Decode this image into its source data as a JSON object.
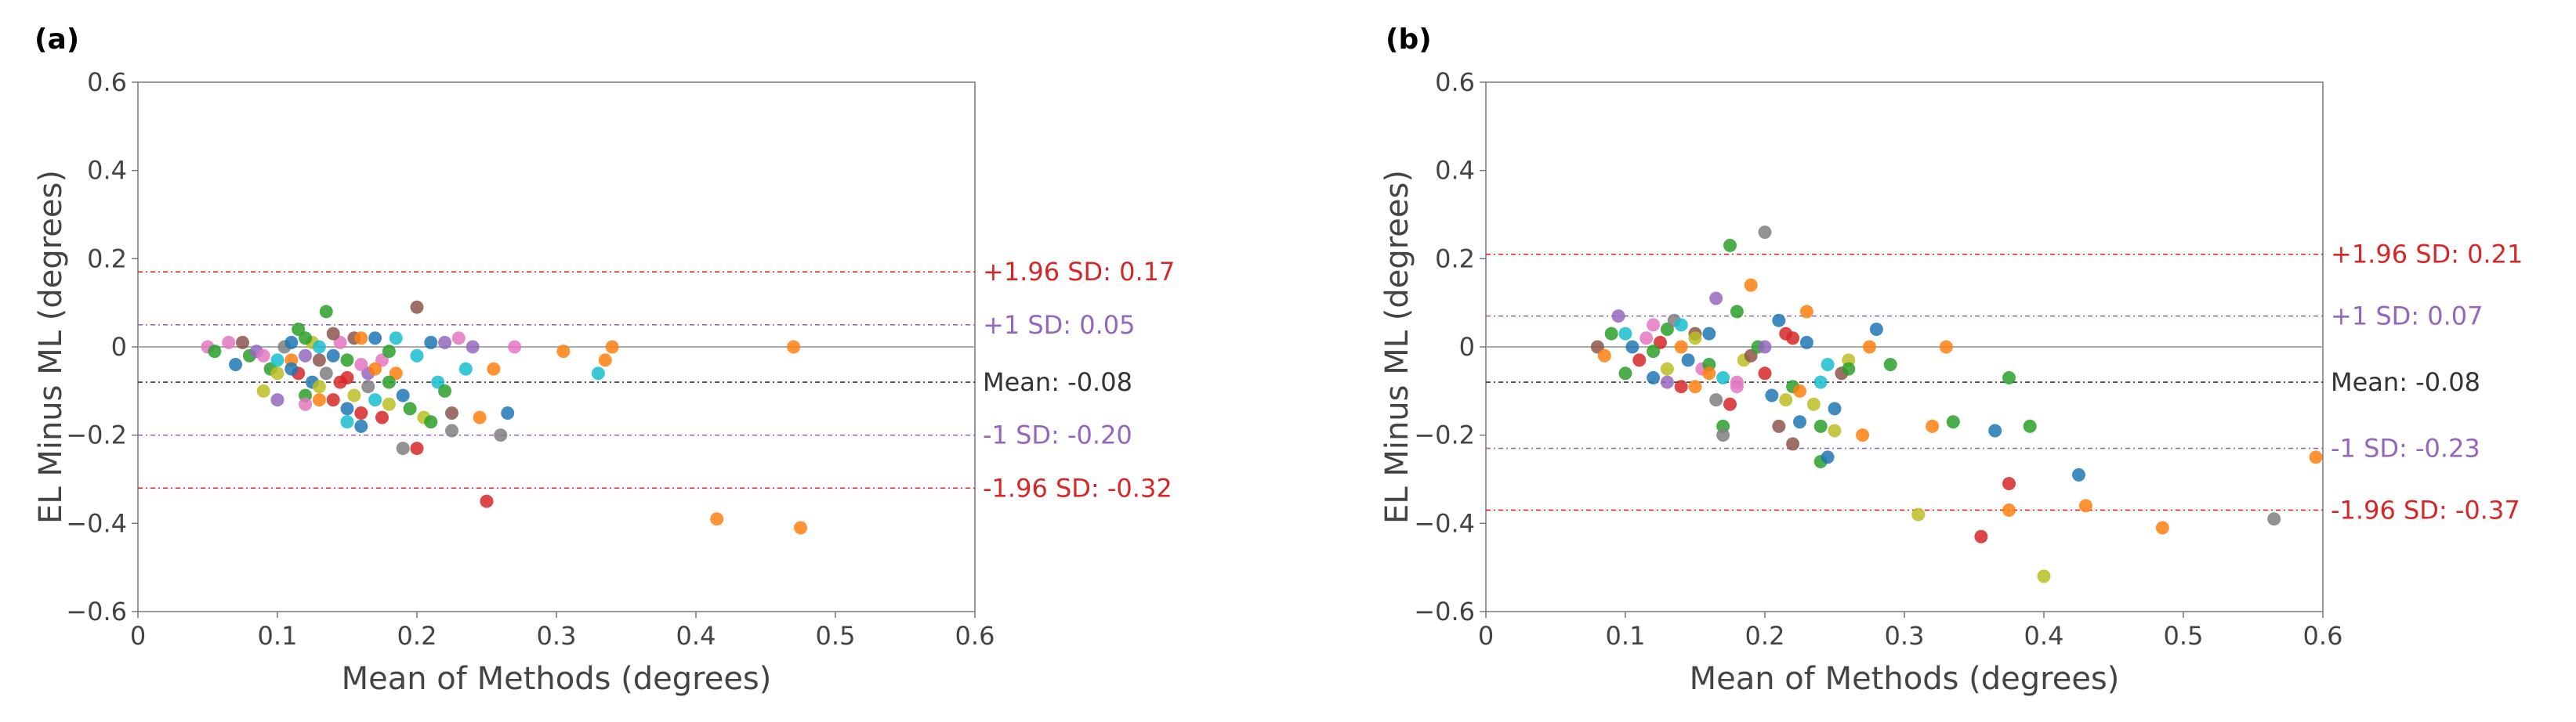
{
  "colors": {
    "sd196": "#d62728",
    "sd1": "#9467bd",
    "mean": "#000000",
    "zero": "#aaaaaa",
    "text": "#444444",
    "palette": [
      "#1f77b4",
      "#ff7f0e",
      "#2ca02c",
      "#d62728",
      "#9467bd",
      "#8c564b",
      "#e377c2",
      "#7f7f7f",
      "#bcbd22",
      "#17becf"
    ]
  },
  "chart_data": [
    {
      "type": "scatter",
      "panel_label": "(a)",
      "xlabel": "Mean of Methods (degrees)",
      "ylabel": "EL Minus ML (degrees)",
      "xlim": [
        0,
        0.6
      ],
      "ylim": [
        -0.6,
        0.6
      ],
      "xticks": [
        0,
        0.1,
        0.2,
        0.3,
        0.4,
        0.5,
        0.6
      ],
      "xtick_labels": [
        "0",
        "0.1",
        "0.2",
        "0.3",
        "0.4",
        "0.5",
        "0.6"
      ],
      "yticks": [
        -0.6,
        -0.4,
        -0.2,
        0,
        0.2,
        0.4,
        0.6
      ],
      "ytick_labels": [
        "−0.6",
        "−0.4",
        "−0.2",
        "0",
        "0.2",
        "0.4",
        "0.6"
      ],
      "reference_lines": [
        {
          "name": "plus196",
          "value": 0.17,
          "label": "+1.96 SD: 0.17",
          "color": "#d62728"
        },
        {
          "name": "plus1",
          "value": 0.05,
          "label": "+1 SD: 0.05",
          "color": "#9467bd"
        },
        {
          "name": "mean",
          "value": -0.08,
          "label": "Mean: -0.08",
          "color": "#333333"
        },
        {
          "name": "minus1",
          "value": -0.2,
          "label": "-1 SD: -0.20",
          "color": "#9467bd"
        },
        {
          "name": "minus196",
          "value": -0.32,
          "label": "-1.96 SD: -0.32",
          "color": "#d62728"
        }
      ],
      "points": [
        [
          0.05,
          0.0,
          6
        ],
        [
          0.055,
          -0.01,
          2
        ],
        [
          0.065,
          0.01,
          6
        ],
        [
          0.07,
          -0.04,
          0
        ],
        [
          0.075,
          0.01,
          5
        ],
        [
          0.08,
          -0.02,
          2
        ],
        [
          0.085,
          -0.01,
          4
        ],
        [
          0.09,
          -0.1,
          8
        ],
        [
          0.09,
          -0.02,
          6
        ],
        [
          0.095,
          -0.05,
          2
        ],
        [
          0.1,
          -0.06,
          8
        ],
        [
          0.1,
          -0.03,
          9
        ],
        [
          0.105,
          0.0,
          7
        ],
        [
          0.11,
          -0.03,
          1
        ],
        [
          0.11,
          0.01,
          0
        ],
        [
          0.115,
          0.04,
          2
        ],
        [
          0.115,
          -0.06,
          3
        ],
        [
          0.12,
          -0.11,
          2
        ],
        [
          0.12,
          -0.13,
          6
        ],
        [
          0.12,
          -0.02,
          4
        ],
        [
          0.125,
          0.01,
          8
        ],
        [
          0.125,
          -0.08,
          0
        ],
        [
          0.13,
          -0.03,
          5
        ],
        [
          0.13,
          -0.12,
          1
        ],
        [
          0.13,
          0.0,
          9
        ],
        [
          0.135,
          0.08,
          2
        ],
        [
          0.135,
          -0.06,
          7
        ],
        [
          0.14,
          -0.12,
          3
        ],
        [
          0.14,
          -0.02,
          0
        ],
        [
          0.145,
          -0.08,
          3
        ],
        [
          0.145,
          0.01,
          6
        ],
        [
          0.15,
          -0.14,
          0
        ],
        [
          0.15,
          -0.17,
          9
        ],
        [
          0.15,
          -0.03,
          2
        ],
        [
          0.155,
          0.02,
          5
        ],
        [
          0.155,
          -0.11,
          8
        ],
        [
          0.16,
          -0.15,
          3
        ],
        [
          0.16,
          -0.18,
          0
        ],
        [
          0.16,
          0.02,
          1
        ],
        [
          0.165,
          -0.06,
          4
        ],
        [
          0.165,
          -0.09,
          7
        ],
        [
          0.17,
          -0.12,
          9
        ],
        [
          0.17,
          0.02,
          0
        ],
        [
          0.175,
          -0.16,
          3
        ],
        [
          0.175,
          -0.03,
          6
        ],
        [
          0.18,
          -0.01,
          2
        ],
        [
          0.18,
          -0.13,
          8
        ],
        [
          0.185,
          0.02,
          9
        ],
        [
          0.185,
          -0.06,
          1
        ],
        [
          0.19,
          -0.11,
          0
        ],
        [
          0.19,
          -0.23,
          7
        ],
        [
          0.195,
          -0.14,
          2
        ],
        [
          0.2,
          0.09,
          5
        ],
        [
          0.2,
          -0.23,
          3
        ],
        [
          0.205,
          -0.16,
          8
        ],
        [
          0.21,
          0.01,
          0
        ],
        [
          0.21,
          -0.17,
          2
        ],
        [
          0.215,
          -0.08,
          9
        ],
        [
          0.22,
          -0.1,
          2
        ],
        [
          0.22,
          0.01,
          4
        ],
        [
          0.225,
          -0.19,
          7
        ],
        [
          0.225,
          -0.15,
          5
        ],
        [
          0.23,
          0.02,
          6
        ],
        [
          0.235,
          -0.05,
          9
        ],
        [
          0.24,
          0.0,
          4
        ],
        [
          0.245,
          -0.16,
          1
        ],
        [
          0.25,
          -0.35,
          3
        ],
        [
          0.255,
          -0.05,
          1
        ],
        [
          0.26,
          -0.2,
          7
        ],
        [
          0.265,
          -0.15,
          0
        ],
        [
          0.27,
          0.0,
          6
        ],
        [
          0.305,
          -0.01,
          1
        ],
        [
          0.33,
          -0.06,
          9
        ],
        [
          0.335,
          -0.03,
          1
        ],
        [
          0.34,
          0.0,
          1
        ],
        [
          0.415,
          -0.39,
          1
        ],
        [
          0.47,
          0.0,
          1
        ],
        [
          0.475,
          -0.41,
          1
        ],
        [
          0.11,
          -0.05,
          0
        ],
        [
          0.12,
          0.02,
          2
        ],
        [
          0.14,
          0.03,
          5
        ],
        [
          0.16,
          -0.04,
          6
        ],
        [
          0.18,
          -0.08,
          2
        ],
        [
          0.2,
          -0.02,
          9
        ],
        [
          0.13,
          -0.09,
          8
        ],
        [
          0.15,
          -0.07,
          3
        ],
        [
          0.17,
          -0.05,
          1
        ],
        [
          0.1,
          -0.12,
          4
        ]
      ]
    },
    {
      "type": "scatter",
      "panel_label": "(b)",
      "xlabel": "Mean of Methods (degrees)",
      "ylabel": "EL Minus ML (degrees)",
      "xlim": [
        0,
        0.6
      ],
      "ylim": [
        -0.6,
        0.6
      ],
      "xticks": [
        0,
        0.1,
        0.2,
        0.3,
        0.4,
        0.5,
        0.6
      ],
      "xtick_labels": [
        "0",
        "0.1",
        "0.2",
        "0.3",
        "0.4",
        "0.5",
        "0.6"
      ],
      "yticks": [
        -0.6,
        -0.4,
        -0.2,
        0,
        0.2,
        0.4,
        0.6
      ],
      "ytick_labels": [
        "−0.6",
        "−0.4",
        "−0.2",
        "0",
        "0.2",
        "0.4",
        "0.6"
      ],
      "reference_lines": [
        {
          "name": "plus196",
          "value": 0.21,
          "label": "+1.96 SD: 0.21",
          "color": "#d62728"
        },
        {
          "name": "plus1",
          "value": 0.07,
          "label": "+1 SD: 0.07",
          "color": "#9467bd"
        },
        {
          "name": "mean",
          "value": -0.08,
          "label": "Mean: -0.08",
          "color": "#333333"
        },
        {
          "name": "minus1",
          "value": -0.23,
          "label": "-1 SD: -0.23",
          "color": "#9467bd"
        },
        {
          "name": "minus196",
          "value": -0.37,
          "label": "-1.96 SD: -0.37",
          "color": "#d62728"
        }
      ],
      "points": [
        [
          0.08,
          0.0,
          5
        ],
        [
          0.085,
          -0.02,
          1
        ],
        [
          0.09,
          0.03,
          2
        ],
        [
          0.095,
          0.07,
          4
        ],
        [
          0.1,
          -0.06,
          2
        ],
        [
          0.1,
          0.03,
          9
        ],
        [
          0.105,
          0.0,
          0
        ],
        [
          0.11,
          -0.03,
          3
        ],
        [
          0.115,
          0.02,
          6
        ],
        [
          0.12,
          0.05,
          6
        ],
        [
          0.12,
          -0.07,
          0
        ],
        [
          0.125,
          0.01,
          3
        ],
        [
          0.13,
          -0.05,
          8
        ],
        [
          0.13,
          0.04,
          2
        ],
        [
          0.135,
          0.06,
          7
        ],
        [
          0.14,
          -0.09,
          3
        ],
        [
          0.14,
          0.0,
          1
        ],
        [
          0.145,
          -0.03,
          0
        ],
        [
          0.15,
          -0.09,
          1
        ],
        [
          0.15,
          0.03,
          5
        ],
        [
          0.155,
          -0.05,
          6
        ],
        [
          0.16,
          -0.04,
          2
        ],
        [
          0.16,
          0.03,
          0
        ],
        [
          0.165,
          -0.12,
          7
        ],
        [
          0.165,
          0.11,
          4
        ],
        [
          0.17,
          -0.18,
          2
        ],
        [
          0.17,
          -0.2,
          7
        ],
        [
          0.17,
          -0.07,
          9
        ],
        [
          0.175,
          0.23,
          2
        ],
        [
          0.175,
          -0.13,
          3
        ],
        [
          0.18,
          0.08,
          2
        ],
        [
          0.18,
          -0.09,
          6
        ],
        [
          0.185,
          -0.03,
          8
        ],
        [
          0.19,
          -0.02,
          5
        ],
        [
          0.19,
          0.14,
          1
        ],
        [
          0.195,
          0.0,
          2
        ],
        [
          0.2,
          0.26,
          7
        ],
        [
          0.2,
          -0.06,
          3
        ],
        [
          0.205,
          -0.11,
          0
        ],
        [
          0.21,
          0.06,
          0
        ],
        [
          0.21,
          -0.18,
          5
        ],
        [
          0.215,
          0.03,
          3
        ],
        [
          0.215,
          -0.12,
          8
        ],
        [
          0.22,
          -0.22,
          5
        ],
        [
          0.22,
          -0.09,
          2
        ],
        [
          0.225,
          -0.1,
          1
        ],
        [
          0.225,
          -0.17,
          0
        ],
        [
          0.23,
          0.08,
          1
        ],
        [
          0.23,
          0.01,
          0
        ],
        [
          0.235,
          -0.13,
          8
        ],
        [
          0.24,
          -0.18,
          2
        ],
        [
          0.24,
          -0.26,
          2
        ],
        [
          0.245,
          -0.04,
          9
        ],
        [
          0.245,
          -0.25,
          0
        ],
        [
          0.25,
          -0.19,
          8
        ],
        [
          0.25,
          -0.14,
          0
        ],
        [
          0.255,
          -0.06,
          5
        ],
        [
          0.26,
          -0.03,
          8
        ],
        [
          0.27,
          -0.2,
          1
        ],
        [
          0.275,
          0.0,
          1
        ],
        [
          0.28,
          0.04,
          0
        ],
        [
          0.29,
          -0.04,
          2
        ],
        [
          0.31,
          -0.38,
          8
        ],
        [
          0.32,
          -0.18,
          1
        ],
        [
          0.33,
          0.0,
          1
        ],
        [
          0.335,
          -0.17,
          2
        ],
        [
          0.355,
          -0.43,
          3
        ],
        [
          0.365,
          -0.19,
          0
        ],
        [
          0.375,
          -0.31,
          3
        ],
        [
          0.375,
          -0.37,
          1
        ],
        [
          0.375,
          -0.07,
          2
        ],
        [
          0.39,
          -0.18,
          2
        ],
        [
          0.4,
          -0.52,
          8
        ],
        [
          0.425,
          -0.29,
          0
        ],
        [
          0.43,
          -0.36,
          1
        ],
        [
          0.485,
          -0.41,
          1
        ],
        [
          0.565,
          -0.39,
          7
        ],
        [
          0.595,
          -0.25,
          1
        ],
        [
          0.12,
          -0.01,
          2
        ],
        [
          0.14,
          0.05,
          9
        ],
        [
          0.16,
          -0.06,
          1
        ],
        [
          0.18,
          -0.08,
          6
        ],
        [
          0.2,
          0.0,
          4
        ],
        [
          0.22,
          0.02,
          3
        ],
        [
          0.24,
          -0.08,
          9
        ],
        [
          0.26,
          -0.05,
          2
        ],
        [
          0.13,
          -0.08,
          4
        ],
        [
          0.15,
          0.02,
          8
        ]
      ]
    }
  ]
}
